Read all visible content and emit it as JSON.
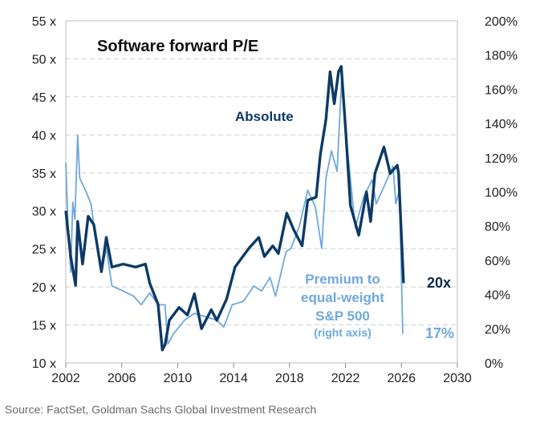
{
  "chart_data": {
    "type": "line",
    "title": "Software forward P/E",
    "xlim": [
      2002,
      2030
    ],
    "x_ticks": [
      "2002",
      "2006",
      "2010",
      "2014",
      "2018",
      "2022",
      "2026",
      "2030"
    ],
    "y_left": {
      "lim": [
        10,
        55
      ],
      "ticks": [
        "10 x",
        "15 x",
        "20 x",
        "25 x",
        "30 x",
        "35 x",
        "40 x",
        "45 x",
        "50 x",
        "55 x"
      ]
    },
    "y_right": {
      "lim": [
        0,
        200
      ],
      "ticks": [
        "0%",
        "20%",
        "40%",
        "60%",
        "80%",
        "100%",
        "120%",
        "140%",
        "160%",
        "180%",
        "200%"
      ]
    },
    "grid": "horizontal dashed",
    "series": [
      {
        "name": "Absolute",
        "axis": "left",
        "color": "#0d3a66",
        "end_label": "20x",
        "points": [
          [
            2002.0,
            30.0
          ],
          [
            2002.35,
            24.0
          ],
          [
            2002.7,
            20.2
          ],
          [
            2002.85,
            28.6
          ],
          [
            2003.2,
            23.0
          ],
          [
            2003.6,
            29.3
          ],
          [
            2004.0,
            28.2
          ],
          [
            2004.55,
            22.0
          ],
          [
            2004.9,
            26.5
          ],
          [
            2005.3,
            22.6
          ],
          [
            2006.1,
            23.0
          ],
          [
            2007.0,
            22.6
          ],
          [
            2007.7,
            23.0
          ],
          [
            2008.0,
            20.5
          ],
          [
            2008.6,
            17.7
          ],
          [
            2008.9,
            11.7
          ],
          [
            2009.1,
            12.4
          ],
          [
            2009.4,
            15.6
          ],
          [
            2010.1,
            17.3
          ],
          [
            2010.7,
            16.3
          ],
          [
            2011.2,
            19.1
          ],
          [
            2011.7,
            14.5
          ],
          [
            2012.4,
            17.0
          ],
          [
            2012.8,
            15.6
          ],
          [
            2013.5,
            18.4
          ],
          [
            2014.1,
            22.6
          ],
          [
            2015.1,
            25.1
          ],
          [
            2015.8,
            26.5
          ],
          [
            2016.2,
            24.0
          ],
          [
            2016.8,
            25.4
          ],
          [
            2017.2,
            24.4
          ],
          [
            2017.8,
            29.7
          ],
          [
            2018.3,
            27.5
          ],
          [
            2018.9,
            25.4
          ],
          [
            2019.3,
            31.4
          ],
          [
            2019.9,
            31.8
          ],
          [
            2020.2,
            37.4
          ],
          [
            2020.6,
            42.0
          ],
          [
            2020.9,
            48.3
          ],
          [
            2021.2,
            44.1
          ],
          [
            2021.5,
            48.3
          ],
          [
            2021.7,
            49.0
          ],
          [
            2022.0,
            40.9
          ],
          [
            2022.35,
            30.7
          ],
          [
            2022.95,
            26.8
          ],
          [
            2023.5,
            32.5
          ],
          [
            2023.8,
            28.6
          ],
          [
            2024.1,
            34.9
          ],
          [
            2024.75,
            38.4
          ],
          [
            2025.2,
            34.9
          ],
          [
            2025.7,
            36.0
          ],
          [
            2025.8,
            34.9
          ],
          [
            2026.15,
            20.5
          ]
        ]
      },
      {
        "name": "Premium to equal-weight S&P 500 (right axis)",
        "axis": "right",
        "color": "#6fa8dc",
        "end_label": "17%",
        "points": [
          [
            2002.0,
            117
          ],
          [
            2002.15,
            83
          ],
          [
            2002.35,
            53
          ],
          [
            2002.5,
            94
          ],
          [
            2002.65,
            84
          ],
          [
            2002.85,
            133
          ],
          [
            2003.0,
            108
          ],
          [
            2003.4,
            101
          ],
          [
            2003.8,
            93
          ],
          [
            2004.15,
            72
          ],
          [
            2004.55,
            53
          ],
          [
            2004.9,
            67
          ],
          [
            2005.3,
            45
          ],
          [
            2006.1,
            42
          ],
          [
            2006.85,
            39
          ],
          [
            2007.4,
            34
          ],
          [
            2008.0,
            41
          ],
          [
            2008.6,
            34
          ],
          [
            2009.1,
            34
          ],
          [
            2009.3,
            11
          ],
          [
            2009.7,
            17
          ],
          [
            2010.5,
            25
          ],
          [
            2011.2,
            29
          ],
          [
            2012.0,
            27
          ],
          [
            2012.8,
            25
          ],
          [
            2013.3,
            21
          ],
          [
            2013.9,
            34
          ],
          [
            2014.7,
            36
          ],
          [
            2015.45,
            45
          ],
          [
            2016.0,
            42
          ],
          [
            2016.6,
            50
          ],
          [
            2017.0,
            39
          ],
          [
            2017.75,
            65
          ],
          [
            2018.1,
            67
          ],
          [
            2018.7,
            80
          ],
          [
            2019.3,
            101
          ],
          [
            2019.85,
            91
          ],
          [
            2020.3,
            67
          ],
          [
            2020.6,
            108
          ],
          [
            2021.0,
            124
          ],
          [
            2021.4,
            112
          ],
          [
            2021.75,
            170
          ],
          [
            2022.15,
            124
          ],
          [
            2022.7,
            79
          ],
          [
            2023.3,
            97
          ],
          [
            2023.9,
            107
          ],
          [
            2024.2,
            93
          ],
          [
            2024.8,
            104
          ],
          [
            2025.4,
            115
          ],
          [
            2025.6,
            93
          ],
          [
            2025.85,
            101
          ],
          [
            2026.1,
            17
          ]
        ]
      }
    ],
    "annotations": {
      "absolute_label": "Absolute",
      "premium_label": [
        "Premium to",
        "equal-weight",
        "S&P 500",
        "(right axis)"
      ]
    },
    "source": "Source: FactSet, Goldman Sachs Global Investment Research"
  }
}
